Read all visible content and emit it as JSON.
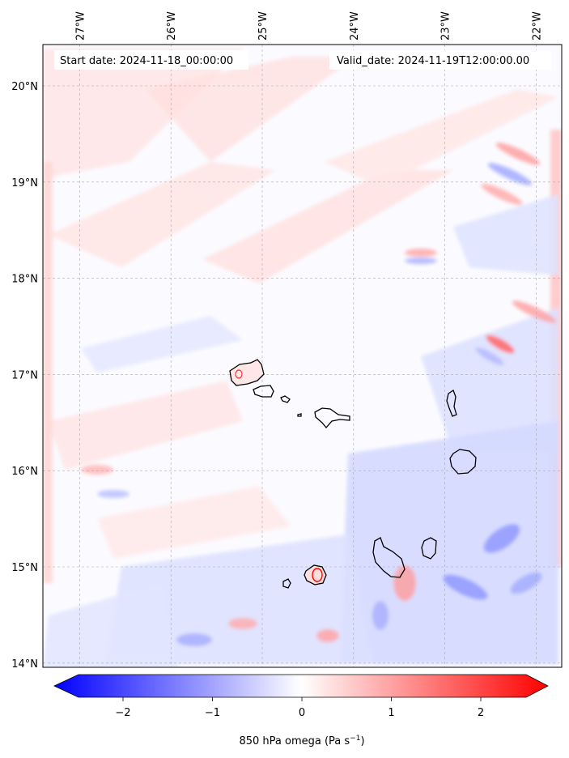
{
  "map": {
    "start_label": "Start date: 2024-11-18_00:00:00",
    "valid_label": "Valid_date: 2024-11-19T12:00:00.00",
    "lon_ticks": [
      {
        "lon": -27,
        "label": "27°W"
      },
      {
        "lon": -26,
        "label": "26°W"
      },
      {
        "lon": -25,
        "label": "25°W"
      },
      {
        "lon": -24,
        "label": "24°W"
      },
      {
        "lon": -23,
        "label": "23°W"
      },
      {
        "lon": -22,
        "label": "22°W"
      }
    ],
    "lat_ticks": [
      {
        "lat": 20,
        "label": "20°N"
      },
      {
        "lat": 19,
        "label": "19°N"
      },
      {
        "lat": 18,
        "label": "18°N"
      },
      {
        "lat": 17,
        "label": "17°N"
      },
      {
        "lat": 16,
        "label": "16°N"
      },
      {
        "lat": 15,
        "label": "15°N"
      },
      {
        "lat": 14,
        "label": "14°N"
      }
    ],
    "colors": {
      "negative": "#0000ff",
      "zero": "#ffffff",
      "positive": "#ff0000",
      "coast": "#000000"
    }
  },
  "colorbar": {
    "min": -2.7,
    "max": 2.7,
    "ticks": [
      {
        "value": -2,
        "label": "−2"
      },
      {
        "value": -1,
        "label": "−1"
      },
      {
        "value": 0,
        "label": "0"
      },
      {
        "value": 1,
        "label": "1"
      },
      {
        "value": 2,
        "label": "2"
      }
    ],
    "label_main": "850 hPa omega (Pa s",
    "label_sup": "−1",
    "label_close": ")"
  }
}
